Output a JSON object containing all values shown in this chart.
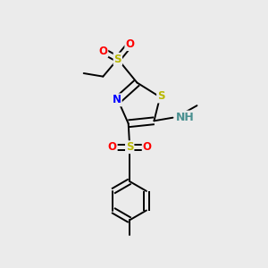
{
  "bg_color": "#ebebeb",
  "atom_colors": {
    "S": "#b8b800",
    "N": "#0000ff",
    "O": "#ff0000",
    "C": "#000000",
    "H": "#4a9090"
  },
  "bond_color": "#000000",
  "font_size": 8.5,
  "lw": 1.4
}
